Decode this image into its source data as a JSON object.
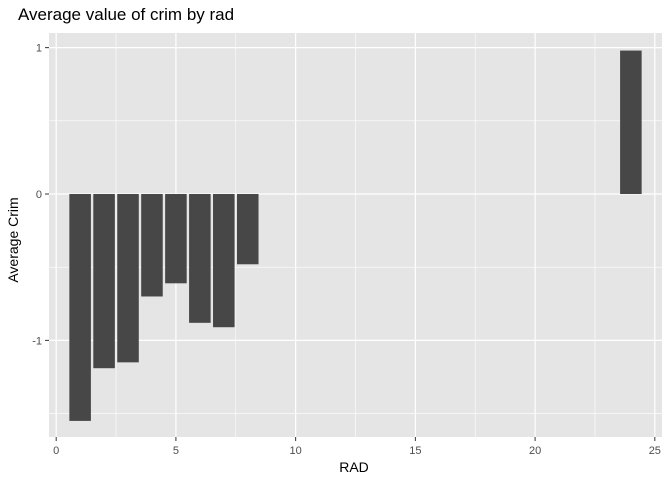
{
  "chart_data": {
    "type": "bar",
    "title": "Average value of crim by rad",
    "xlabel": "RAD",
    "ylabel": "Average Crim",
    "x": [
      1,
      2,
      3,
      4,
      5,
      6,
      7,
      8,
      24
    ],
    "values": [
      -1.55,
      -1.19,
      -1.15,
      -0.7,
      -0.61,
      -0.88,
      -0.91,
      -0.48,
      0.98
    ],
    "xlim": [
      -0.3,
      25.3
    ],
    "ylim": [
      -1.66,
      1.1
    ],
    "xticks": [
      0,
      5,
      10,
      15,
      20,
      25
    ],
    "xtick_labels": [
      "0",
      "5",
      "10",
      "15",
      "20",
      "25"
    ],
    "yticks": [
      -1,
      0,
      1
    ],
    "ytick_labels": [
      "-1",
      "0",
      "1"
    ],
    "grid": true,
    "bar_color": "#474747",
    "panel_color": "#e5e5e5",
    "grid_color": "#ffffff"
  }
}
